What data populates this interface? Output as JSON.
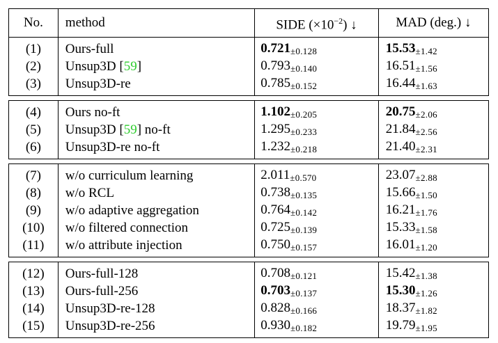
{
  "table": {
    "headers": {
      "no": "No.",
      "method": "method",
      "side": "SIDE (×10",
      "side_exp": "−2",
      "side_suffix": ") ↓",
      "mad": "MAD (deg.) ↓"
    },
    "groups": [
      [
        {
          "no": "(1)",
          "method": "Ours-full",
          "cite": "",
          "method_suffix": "",
          "side": "0.721",
          "side_std": "±0.128",
          "side_bold": true,
          "mad": "15.53",
          "mad_std": "±1.42",
          "mad_bold": true
        },
        {
          "no": "(2)",
          "method": "Unsup3D [",
          "cite": "59",
          "method_suffix": "]",
          "side": "0.793",
          "side_std": "±0.140",
          "side_bold": false,
          "mad": "16.51",
          "mad_std": "±1.56",
          "mad_bold": false
        },
        {
          "no": "(3)",
          "method": "Unsup3D-re",
          "cite": "",
          "method_suffix": "",
          "side": "0.785",
          "side_std": "±0.152",
          "side_bold": false,
          "mad": "16.44",
          "mad_std": "±1.63",
          "mad_bold": false
        }
      ],
      [
        {
          "no": "(4)",
          "method": "Ours no-ft",
          "cite": "",
          "method_suffix": "",
          "side": "1.102",
          "side_std": "±0.205",
          "side_bold": true,
          "mad": "20.75",
          "mad_std": "±2.06",
          "mad_bold": true
        },
        {
          "no": "(5)",
          "method": "Unsup3D [",
          "cite": "59",
          "method_suffix": "] no-ft",
          "side": "1.295",
          "side_std": "±0.233",
          "side_bold": false,
          "mad": "21.84",
          "mad_std": "±2.56",
          "mad_bold": false
        },
        {
          "no": "(6)",
          "method": "Unsup3D-re no-ft",
          "cite": "",
          "method_suffix": "",
          "side": "1.232",
          "side_std": "±0.218",
          "side_bold": false,
          "mad": "21.40",
          "mad_std": "±2.31",
          "mad_bold": false
        }
      ],
      [
        {
          "no": "(7)",
          "method": "w/o curriculum learning",
          "cite": "",
          "method_suffix": "",
          "side": "2.011",
          "side_std": "±0.570",
          "side_bold": false,
          "mad": "23.07",
          "mad_std": "±2.88",
          "mad_bold": false
        },
        {
          "no": "(8)",
          "method": "w/o RCL",
          "cite": "",
          "method_suffix": "",
          "side": "0.738",
          "side_std": "±0.135",
          "side_bold": false,
          "mad": "15.66",
          "mad_std": "±1.50",
          "mad_bold": false
        },
        {
          "no": "(9)",
          "method": "w/o adaptive aggregation",
          "cite": "",
          "method_suffix": "",
          "side": "0.764",
          "side_std": "±0.142",
          "side_bold": false,
          "mad": "16.21",
          "mad_std": "±1.76",
          "mad_bold": false
        },
        {
          "no": "(10)",
          "method": "w/o filtered connection",
          "cite": "",
          "method_suffix": "",
          "side": "0.725",
          "side_std": "±0.139",
          "side_bold": false,
          "mad": "15.33",
          "mad_std": "±1.58",
          "mad_bold": false
        },
        {
          "no": "(11)",
          "method": "w/o attribute injection",
          "cite": "",
          "method_suffix": "",
          "side": "0.750",
          "side_std": "±0.157",
          "side_bold": false,
          "mad": "16.01",
          "mad_std": "±1.20",
          "mad_bold": false
        }
      ],
      [
        {
          "no": "(12)",
          "method": "Ours-full-128",
          "cite": "",
          "method_suffix": "",
          "side": "0.708",
          "side_std": "±0.121",
          "side_bold": false,
          "mad": "15.42",
          "mad_std": "±1.38",
          "mad_bold": false
        },
        {
          "no": "(13)",
          "method": "Ours-full-256",
          "cite": "",
          "method_suffix": "",
          "side": "0.703",
          "side_std": "±0.137",
          "side_bold": true,
          "mad": "15.30",
          "mad_std": "±1.26",
          "mad_bold": true
        },
        {
          "no": "(14)",
          "method": "Unsup3D-re-128",
          "cite": "",
          "method_suffix": "",
          "side": "0.828",
          "side_std": "±0.166",
          "side_bold": false,
          "mad": "18.37",
          "mad_std": "±1.82",
          "mad_bold": false
        },
        {
          "no": "(15)",
          "method": "Unsup3D-re-256",
          "cite": "",
          "method_suffix": "",
          "side": "0.930",
          "side_std": "±0.182",
          "side_bold": false,
          "mad": "19.79",
          "mad_std": "±1.95",
          "mad_bold": false
        }
      ]
    ]
  }
}
